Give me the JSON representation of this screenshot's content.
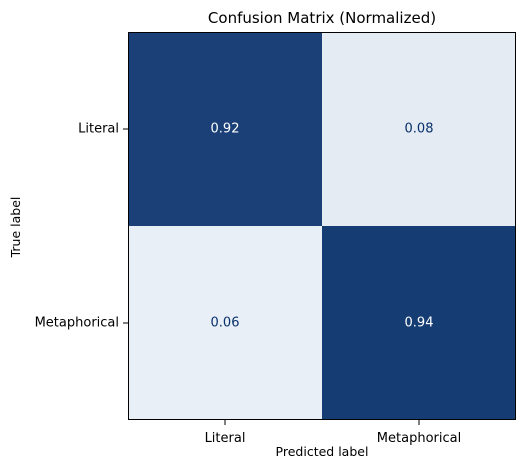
{
  "chart_data": {
    "type": "heatmap",
    "title": "Confusion Matrix (Normalized)",
    "xlabel": "Predicted label",
    "ylabel": "True label",
    "x_categories": [
      "Literal",
      "Metaphorical"
    ],
    "y_categories": [
      "Literal",
      "Metaphorical"
    ],
    "values": [
      [
        0.92,
        0.08
      ],
      [
        0.06,
        0.94
      ]
    ],
    "value_labels": [
      [
        "0.92",
        "0.08"
      ],
      [
        "0.06",
        "0.94"
      ]
    ],
    "colormap": "Blues",
    "vlim": [
      0,
      1
    ],
    "colorbar": false,
    "grid": false,
    "colors": {
      "low": "#f7fbff",
      "high": "#08306b",
      "text_dark_bg": "#ffffff",
      "text_light_bg": "#08306b"
    }
  }
}
